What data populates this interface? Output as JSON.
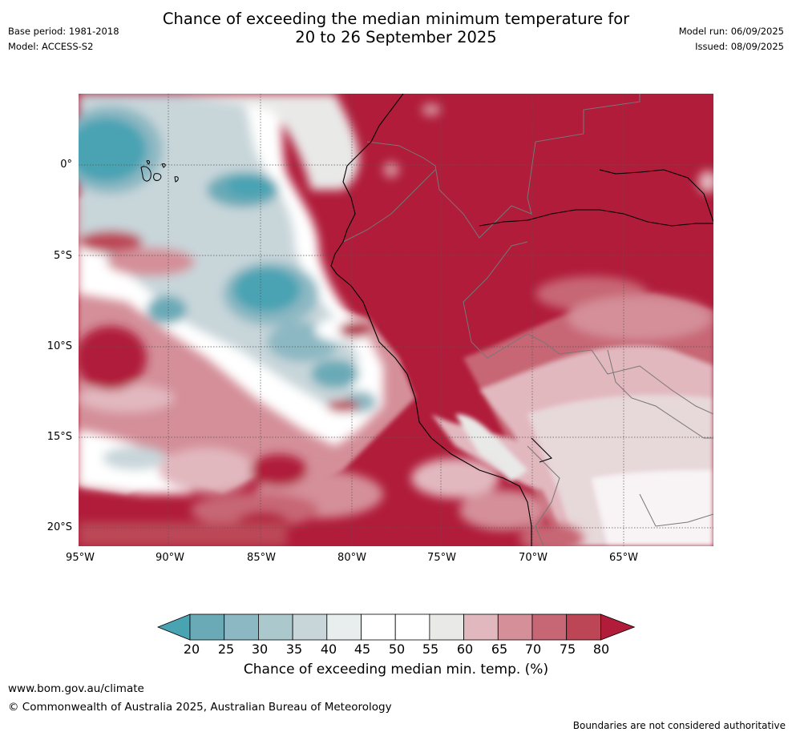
{
  "header": {
    "base_period": "Base period: 1981-2018",
    "model": "Model: ACCESS-S2",
    "model_run": "Model run: 06/09/2025",
    "issued": "Issued: 08/09/2025",
    "title_line1": "Chance of exceeding the median minimum temperature for",
    "title_line2": "20 to 26 September 2025"
  },
  "map": {
    "lat_labels": [
      "0°",
      "5°S",
      "10°S",
      "15°S",
      "20°S"
    ],
    "lon_labels": [
      "95°W",
      "90°W",
      "85°W",
      "80°W",
      "75°W",
      "70°W",
      "65°W"
    ]
  },
  "colorbar": {
    "ticks": [
      "20",
      "25",
      "30",
      "35",
      "40",
      "45",
      "50",
      "55",
      "60",
      "65",
      "70",
      "75",
      "80"
    ],
    "label": "Chance of exceeding median min. temp. (%)",
    "colors": [
      "#4aa3b3",
      "#6aaab7",
      "#8cb8c3",
      "#abc8cc",
      "#c8d6da",
      "#e8edee",
      "#ffffff",
      "#ffffff",
      "#e9e9e8",
      "#e2b8bf",
      "#d48f99",
      "#c76675",
      "#bc4656",
      "#b01c3a"
    ]
  },
  "footer": {
    "website": "www.bom.gov.au/climate",
    "copyright": "© Commonwealth of Australia 2025, Australian Bureau of Meteorology",
    "disclaimer": "Boundaries are not considered authoritative"
  }
}
